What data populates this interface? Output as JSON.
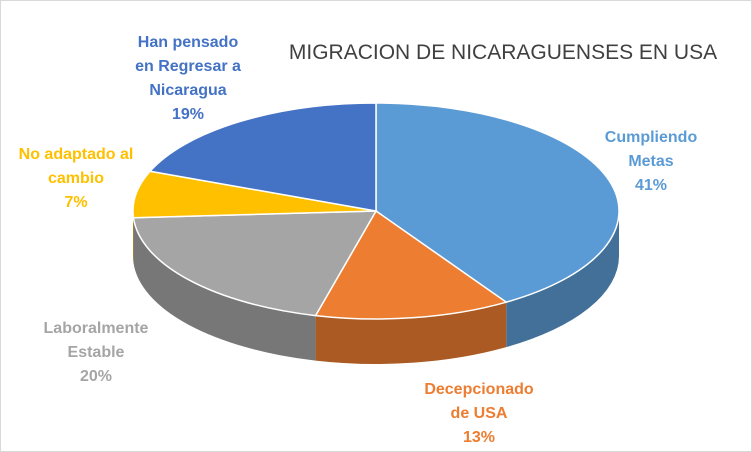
{
  "chart_data": {
    "type": "pie",
    "title": "MIGRACION DE NICARAGUENSES EN USA",
    "slices": [
      {
        "label_lines": [
          "Cumpliendo",
          "Metas"
        ],
        "percent_text": "41%",
        "value": 41,
        "color": "#5b9bd5"
      },
      {
        "label_lines": [
          "Decepcionado",
          "de USA"
        ],
        "percent_text": "13%",
        "value": 13,
        "color": "#ed7d31"
      },
      {
        "label_lines": [
          "Laboralmente",
          "Estable"
        ],
        "percent_text": "20%",
        "value": 20,
        "color": "#a5a5a5"
      },
      {
        "label_lines": [
          "No adaptado al",
          "cambio"
        ],
        "percent_text": "7%",
        "value": 7,
        "color": "#ffc000"
      },
      {
        "label_lines": [
          "Han pensado",
          "en Regresar a",
          "Nicaragua"
        ],
        "percent_text": "19%",
        "value": 19,
        "color": "#4472c4"
      }
    ],
    "style": "3d",
    "legend": "none"
  }
}
